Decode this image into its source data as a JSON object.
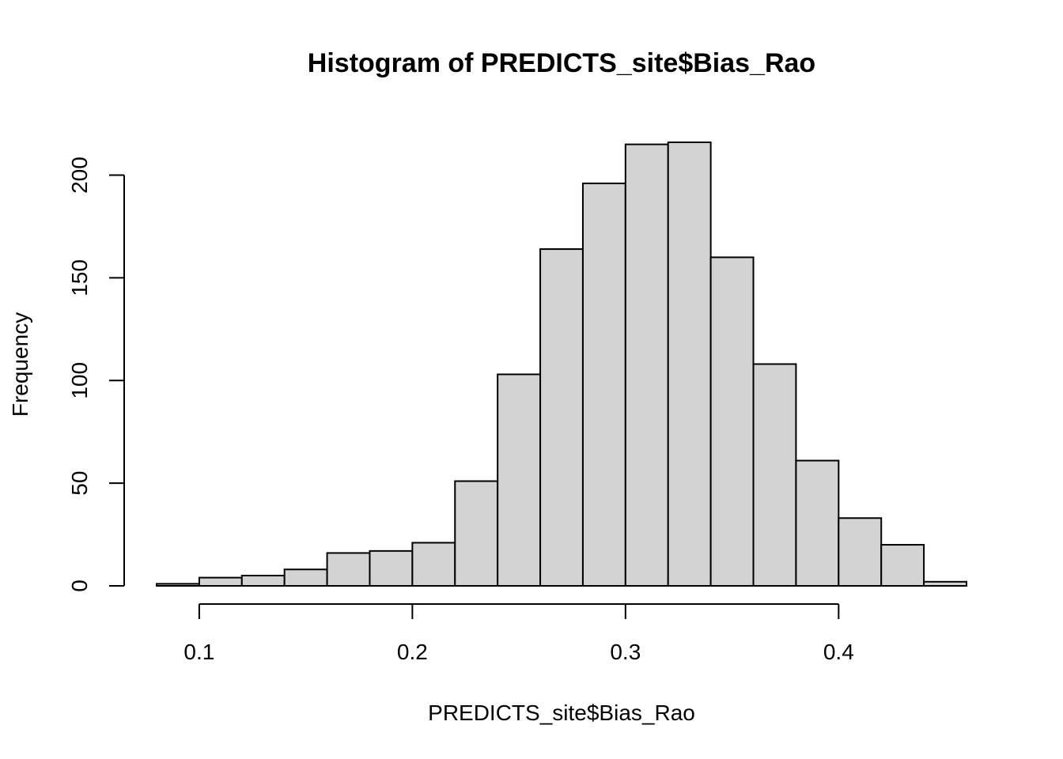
{
  "chart_data": {
    "type": "bar",
    "title": "Histogram of PREDICTS_site$Bias_Rao",
    "xlabel": "PREDICTS_site$Bias_Rao",
    "ylabel": "Frequency",
    "bin_edges": [
      0.08,
      0.1,
      0.12,
      0.14,
      0.16,
      0.18,
      0.2,
      0.22,
      0.24,
      0.26,
      0.28,
      0.3,
      0.32,
      0.34,
      0.36,
      0.38,
      0.4,
      0.42,
      0.44,
      0.46
    ],
    "values": [
      1,
      4,
      5,
      8,
      16,
      17,
      21,
      51,
      103,
      164,
      196,
      215,
      216,
      160,
      108,
      61,
      33,
      20,
      2
    ],
    "xlim": [
      0.08,
      0.46
    ],
    "ylim": [
      0,
      216
    ],
    "x_ticks": [
      0.1,
      0.2,
      0.3,
      0.4
    ],
    "x_tick_labels": [
      "0.1",
      "0.2",
      "0.3",
      "0.4"
    ],
    "y_ticks": [
      0,
      50,
      100,
      150,
      200
    ],
    "y_tick_labels": [
      "0",
      "50",
      "100",
      "150",
      "200"
    ],
    "grid": false,
    "legend": "none",
    "colors": {
      "bar_fill": "#d3d3d3",
      "bar_stroke": "#000000",
      "background": "#ffffff"
    }
  }
}
